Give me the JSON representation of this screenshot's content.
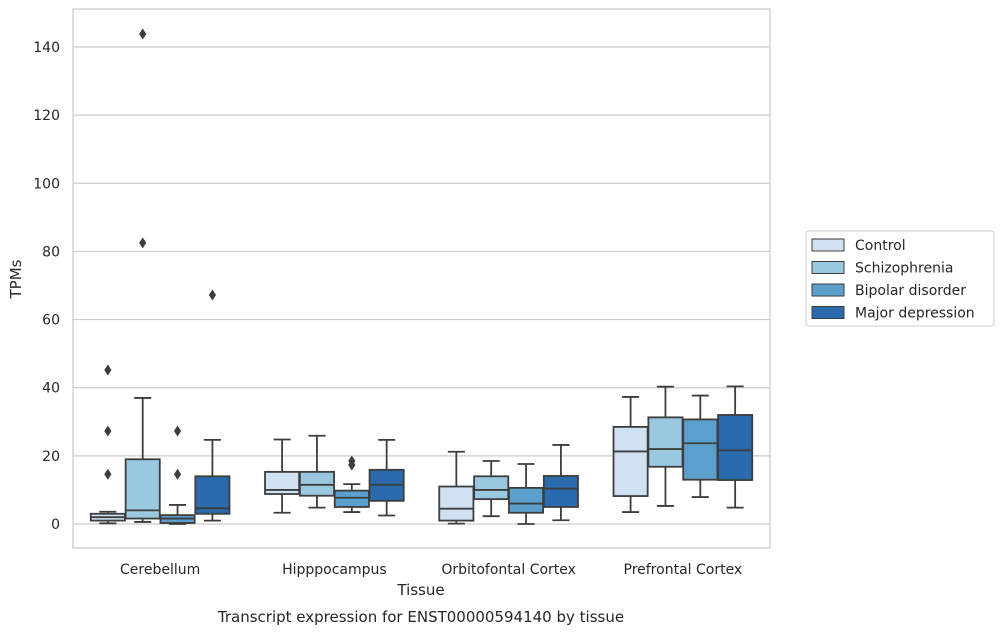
{
  "chart_data": {
    "type": "boxplot",
    "title": "",
    "caption": "Transcript expression for ENST00000594140 by tissue",
    "xlabel": "Tissue",
    "ylabel": "TPMs",
    "ylim": [
      -7,
      152
    ],
    "yticks": [
      0,
      20,
      40,
      60,
      80,
      100,
      120,
      140
    ],
    "grid": "horizontal",
    "legend_position": "right",
    "categories": [
      "Cerebellum",
      "Hipppocampus",
      "Orbitofontal Cortex",
      "Prefrontal Cortex"
    ],
    "series": [
      {
        "name": "Control",
        "color": "#d0e1f1",
        "boxes": [
          {
            "whislo": 0.2,
            "q1": 1.0,
            "med": 2.0,
            "q3": 3.0,
            "whishi": 3.6,
            "fliers": []
          },
          {
            "whislo": 3.3,
            "q1": 8.8,
            "med": 10.0,
            "q3": 15.3,
            "whishi": 24.8,
            "fliers": []
          },
          {
            "whislo": 0.1,
            "q1": 1.0,
            "med": 4.5,
            "q3": 11.0,
            "whishi": 21.2,
            "fliers": []
          },
          {
            "whislo": 3.5,
            "q1": 8.2,
            "med": 21.3,
            "q3": 28.5,
            "whishi": 37.3,
            "fliers": []
          }
        ]
      },
      {
        "name": "Schizophrenia",
        "color": "#9ac8e0",
        "boxes": [
          {
            "whislo": 0.6,
            "q1": 1.6,
            "med": 4.0,
            "q3": 19.0,
            "whishi": 37.0,
            "fliers": [
              82.5,
              143.8
            ]
          },
          {
            "whislo": 4.8,
            "q1": 8.3,
            "med": 11.5,
            "q3": 15.3,
            "whishi": 25.9,
            "fliers": []
          },
          {
            "whislo": 2.3,
            "q1": 7.3,
            "med": 10.0,
            "q3": 14.0,
            "whishi": 18.5,
            "fliers": []
          },
          {
            "whislo": 5.3,
            "q1": 16.8,
            "med": 22.0,
            "q3": 31.3,
            "whishi": 40.3,
            "fliers": []
          }
        ]
      },
      {
        "name": "Bipolar disorder",
        "color": "#5b9fcc",
        "boxes": [
          {
            "whislo": 0.0,
            "q1": 0.3,
            "med": 1.6,
            "q3": 2.6,
            "whishi": 5.6,
            "fliers": [
              14.6,
              27.3
            ]
          },
          {
            "whislo": 3.5,
            "q1": 5.0,
            "med": 7.7,
            "q3": 9.8,
            "whishi": 11.7,
            "fliers": [
              17.3,
              18.5
            ]
          },
          {
            "whislo": 0.0,
            "q1": 3.3,
            "med": 6.0,
            "q3": 10.6,
            "whishi": 17.6,
            "fliers": []
          },
          {
            "whislo": 7.9,
            "q1": 13.0,
            "med": 23.7,
            "q3": 30.7,
            "whishi": 37.7,
            "fliers": []
          }
        ]
      },
      {
        "name": "Major depression",
        "color": "#2a6bad",
        "boxes": [
          {
            "whislo": 1.0,
            "q1": 3.0,
            "med": 4.6,
            "q3": 14.0,
            "whishi": 24.7,
            "fliers": [
              67.2
            ]
          },
          {
            "whislo": 2.5,
            "q1": 6.8,
            "med": 11.5,
            "q3": 15.9,
            "whishi": 24.7,
            "fliers": []
          },
          {
            "whislo": 1.1,
            "q1": 5.0,
            "med": 10.4,
            "q3": 14.1,
            "whishi": 23.2,
            "fliers": []
          },
          {
            "whislo": 4.8,
            "q1": 12.9,
            "med": 21.6,
            "q3": 32.0,
            "whishi": 40.4,
            "fliers": []
          }
        ]
      }
    ],
    "extra_cerebellum_control_fliers": [
      45.2,
      27.3,
      14.6
    ]
  }
}
